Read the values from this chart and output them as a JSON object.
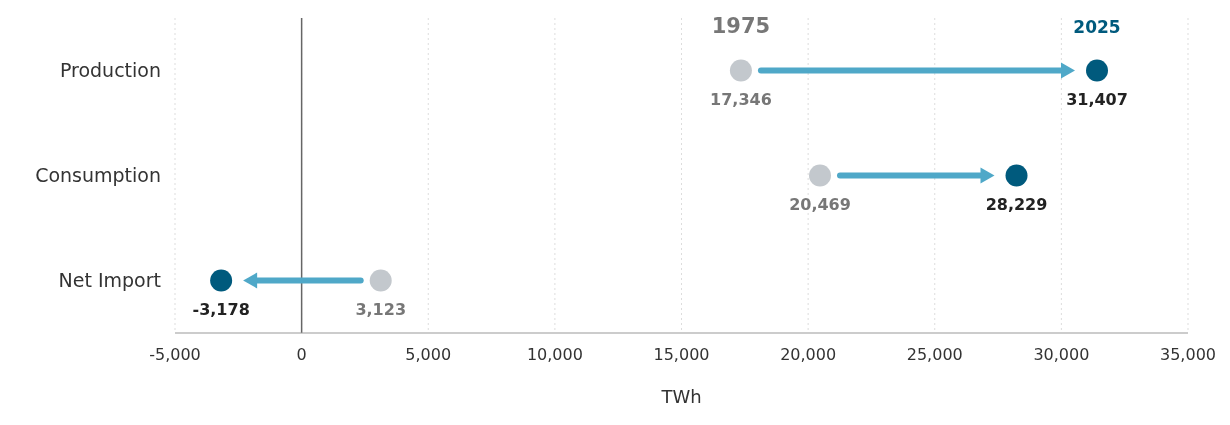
{
  "chart_data": {
    "type": "scatter",
    "orientation": "horizontal",
    "categories": [
      "Production",
      "Consumption",
      "Net Import"
    ],
    "series": [
      {
        "name": "1975",
        "color": "#c3c8cd",
        "values": [
          17346,
          20469,
          3123
        ],
        "value_labels": [
          "17,346",
          "20,469",
          "3,123"
        ]
      },
      {
        "name": "2025",
        "color": "#005a7d",
        "values": [
          31407,
          28229,
          -3178
        ],
        "value_labels": [
          "31,407",
          "28,229",
          "-3,178"
        ]
      }
    ],
    "xlabel": "TWh",
    "xlim": [
      -5000,
      35000
    ],
    "xticks": [
      {
        "value": -5000,
        "label": "-5,000"
      },
      0,
      {
        "value": 5000,
        "label": "5,000"
      },
      {
        "value": 10000,
        "label": "10,000"
      },
      {
        "value": 15000,
        "label": "15,000"
      },
      {
        "value": 20000,
        "label": "20,000"
      },
      {
        "value": 25000,
        "label": "25,000"
      },
      {
        "value": 30000,
        "label": "30,000"
      },
      {
        "value": 35000,
        "label": "35,000"
      }
    ],
    "grid": "x",
    "marker": "circle",
    "ref_lines": [
      {
        "axis": "x",
        "value": 0,
        "color": "#666666"
      }
    ]
  }
}
